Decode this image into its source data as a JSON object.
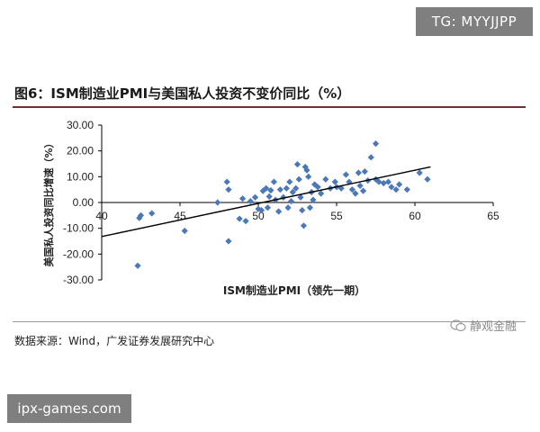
{
  "header": {
    "tag": "TG: MYYJJPP"
  },
  "figure": {
    "title": "图6：ISM制造业PMI与美国私人投资不变价同比（%）"
  },
  "footer": {
    "source": "数据来源：Wind，广发证券发展研究中心",
    "brand": "静观金融",
    "site": "ipx-games.com"
  },
  "chart_data": {
    "type": "scatter",
    "title": "图6：ISM制造业PMI与美国私人投资不变价同比（%）",
    "xlabel": "ISM制造业PMI（领先一期）",
    "ylabel": "美国私人投资同比增速（%）",
    "xlim": [
      40,
      65
    ],
    "ylim": [
      -30,
      30
    ],
    "x_ticks": [
      "40",
      "45",
      "50",
      "55",
      "60",
      "65"
    ],
    "y_ticks": [
      "30.00",
      "20.00",
      "10.00",
      "0.00",
      "-10.00",
      "-20.00",
      "-30.00"
    ],
    "marker_color": "#4a78b8",
    "trend_line": {
      "x": [
        40,
        61
      ],
      "y": [
        -13.2,
        13.8
      ]
    },
    "series": [
      {
        "values": [
          [
            42.3,
            -24.5
          ],
          [
            42.4,
            -6.0
          ],
          [
            42.5,
            -5.0
          ],
          [
            43.2,
            -4.2
          ],
          [
            45.3,
            -11.0
          ],
          [
            47.4,
            0.0
          ],
          [
            48.0,
            8.0
          ],
          [
            48.1,
            -15.0
          ],
          [
            48.1,
            5.0
          ],
          [
            48.8,
            -6.3
          ],
          [
            49.0,
            1.5
          ],
          [
            49.2,
            -7.2
          ],
          [
            49.5,
            0.5
          ],
          [
            49.8,
            2.0
          ],
          [
            50.0,
            -2.5
          ],
          [
            50.2,
            -3.0
          ],
          [
            50.3,
            4.5
          ],
          [
            50.5,
            5.5
          ],
          [
            50.6,
            -2.0
          ],
          [
            50.7,
            2.3
          ],
          [
            50.8,
            4.7
          ],
          [
            51.0,
            8.0
          ],
          [
            51.1,
            1.0
          ],
          [
            51.3,
            -3.5
          ],
          [
            51.4,
            5.0
          ],
          [
            51.6,
            2.0
          ],
          [
            51.8,
            5.5
          ],
          [
            51.9,
            -2.0
          ],
          [
            52.0,
            8.0
          ],
          [
            52.1,
            0.5
          ],
          [
            52.2,
            4.0
          ],
          [
            52.4,
            5.5
          ],
          [
            52.5,
            14.8
          ],
          [
            52.6,
            9.0
          ],
          [
            52.7,
            2.0
          ],
          [
            52.8,
            -3.0
          ],
          [
            52.9,
            -9.0
          ],
          [
            53.0,
            13.8
          ],
          [
            53.1,
            12.5
          ],
          [
            53.2,
            10.0
          ],
          [
            53.3,
            -2.0
          ],
          [
            53.4,
            4.0
          ],
          [
            53.5,
            1.0
          ],
          [
            53.6,
            7.0
          ],
          [
            53.8,
            6.0
          ],
          [
            54.0,
            3.5
          ],
          [
            54.3,
            9.0
          ],
          [
            54.6,
            5.5
          ],
          [
            54.9,
            8.0
          ],
          [
            55.0,
            6.0
          ],
          [
            55.3,
            5.5
          ],
          [
            55.6,
            10.8
          ],
          [
            55.8,
            8.0
          ],
          [
            56.0,
            5.0
          ],
          [
            56.2,
            3.5
          ],
          [
            56.4,
            11.5
          ],
          [
            56.5,
            6.5
          ],
          [
            56.7,
            4.5
          ],
          [
            56.8,
            12.0
          ],
          [
            57.0,
            8.5
          ],
          [
            57.2,
            17.5
          ],
          [
            57.5,
            22.8
          ],
          [
            57.5,
            9.0
          ],
          [
            57.7,
            8.0
          ],
          [
            58.0,
            7.5
          ],
          [
            58.3,
            8.0
          ],
          [
            58.5,
            6.0
          ],
          [
            58.8,
            5.0
          ],
          [
            59.0,
            7.0
          ],
          [
            59.5,
            5.0
          ],
          [
            60.3,
            11.5
          ],
          [
            60.8,
            9.0
          ]
        ]
      }
    ]
  }
}
